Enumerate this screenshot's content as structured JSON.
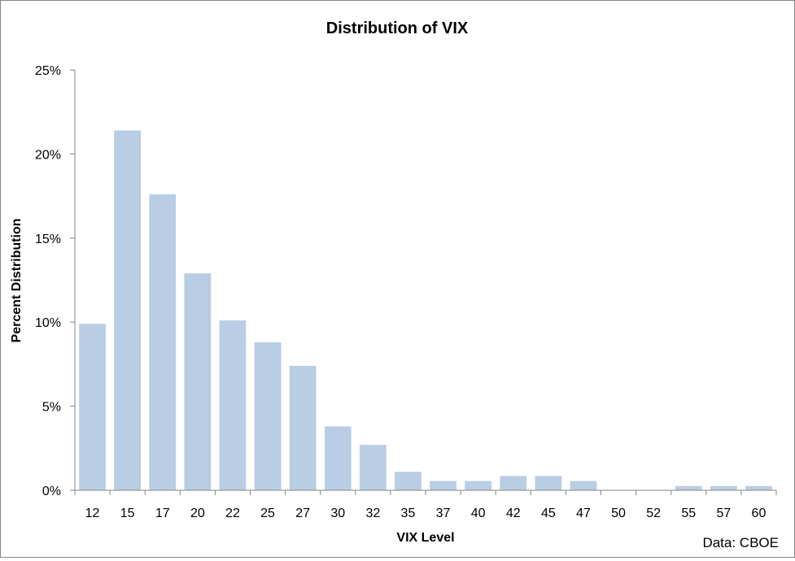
{
  "chart_data": {
    "type": "bar",
    "title": "Distribution of VIX",
    "xlabel": "VIX Level",
    "ylabel": "Percent Distribution",
    "source_note": "Data: CBOE",
    "categories": [
      "12",
      "15",
      "17",
      "20",
      "22",
      "25",
      "27",
      "30",
      "32",
      "35",
      "37",
      "40",
      "42",
      "45",
      "47",
      "50",
      "52",
      "55",
      "57",
      "60"
    ],
    "values": [
      9.9,
      21.4,
      17.6,
      12.9,
      10.1,
      8.8,
      7.4,
      3.8,
      2.7,
      1.1,
      0.55,
      0.55,
      0.85,
      0.85,
      0.55,
      0,
      0,
      0.25,
      0.25,
      0.25
    ],
    "ylim": [
      0,
      25
    ],
    "yticks": [
      0,
      5,
      10,
      15,
      20,
      25
    ],
    "ytick_labels": [
      "0%",
      "5%",
      "10%",
      "15%",
      "20%",
      "25%"
    ],
    "bar_color": "#b9cde5",
    "axis_color": "#868686",
    "grid": false,
    "legend": "none"
  }
}
